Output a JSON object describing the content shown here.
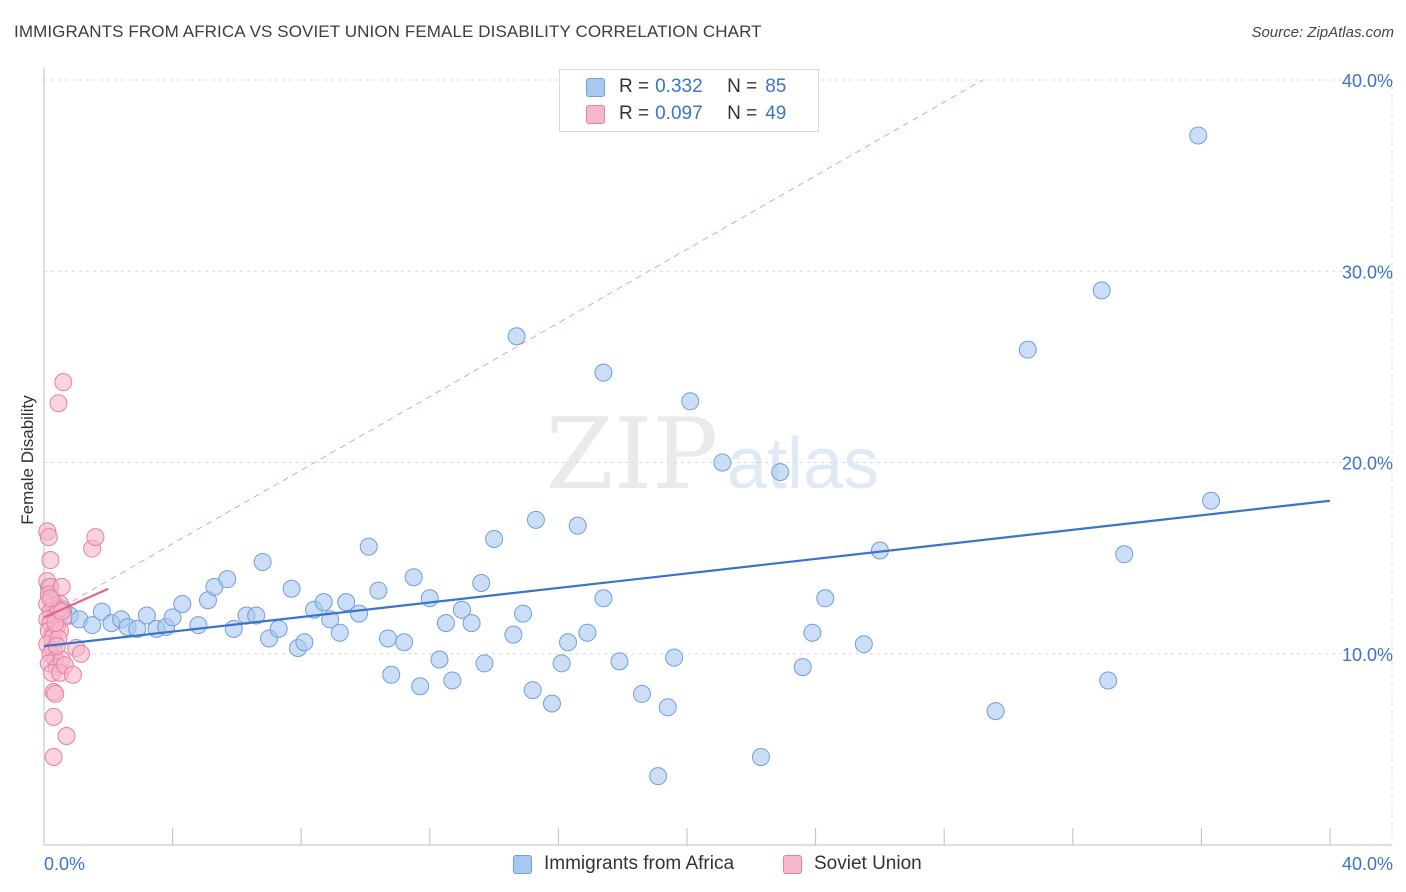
{
  "title": "IMMIGRANTS FROM AFRICA VS SOVIET UNION FEMALE DISABILITY CORRELATION CHART",
  "source": "Source: ZipAtlas.com",
  "watermark": {
    "zip": "ZIP",
    "atlas": "atlas"
  },
  "legend_top": [
    {
      "r_label": "R =",
      "r_value": "0.332",
      "n_label": "N =",
      "n_value": "85",
      "color": "#a8c8ef"
    },
    {
      "r_label": "R =",
      "r_value": "0.097",
      "n_label": "N =",
      "n_value": "49",
      "color": "#f5b8c9"
    }
  ],
  "legend_bottom": [
    {
      "label": "Immigrants from Africa",
      "color": "#a8c8ef"
    },
    {
      "label": "Soviet Union",
      "color": "#f5b8c9"
    }
  ],
  "colors": {
    "africa_fill": "#a8c8ef",
    "africa_stroke": "#6f9fdc",
    "africa_line": "#3a74c9",
    "soviet_fill": "#f5b8c9",
    "soviet_stroke": "#e87f9f",
    "soviet_line": "#e8628a",
    "axis_text": "#3a74c9",
    "grid": "#d8d8d8"
  },
  "chart_data": {
    "type": "scatter",
    "xlabel": "",
    "ylabel": "Female Disability",
    "xlim": [
      0,
      40
    ],
    "ylim": [
      0,
      40
    ],
    "x_tick_labels": [
      "0.0%",
      "40.0%"
    ],
    "y_ticks": [
      10,
      20,
      30,
      40
    ],
    "y_tick_labels": [
      "10.0%",
      "20.0%",
      "30.0%",
      "40.0%"
    ],
    "series": [
      {
        "name": "Immigrants from Africa",
        "r": 0.332,
        "n": 85,
        "trend": {
          "x": [
            0,
            40
          ],
          "y": [
            10.4,
            18.0
          ]
        },
        "points": [
          [
            0.3,
            12.7
          ],
          [
            0.5,
            12.4
          ],
          [
            0.8,
            12.0
          ],
          [
            1.1,
            11.8
          ],
          [
            1.5,
            11.5
          ],
          [
            1.8,
            12.2
          ],
          [
            2.1,
            11.6
          ],
          [
            2.4,
            11.8
          ],
          [
            2.6,
            11.4
          ],
          [
            2.9,
            11.3
          ],
          [
            3.2,
            12.0
          ],
          [
            3.5,
            11.3
          ],
          [
            3.8,
            11.4
          ],
          [
            4.0,
            11.9
          ],
          [
            4.3,
            12.6
          ],
          [
            4.8,
            11.5
          ],
          [
            5.1,
            12.8
          ],
          [
            5.3,
            13.5
          ],
          [
            5.7,
            13.9
          ],
          [
            5.9,
            11.3
          ],
          [
            6.3,
            12.0
          ],
          [
            6.6,
            12.0
          ],
          [
            6.8,
            14.8
          ],
          [
            7.0,
            10.8
          ],
          [
            7.3,
            11.3
          ],
          [
            7.7,
            13.4
          ],
          [
            7.9,
            10.3
          ],
          [
            8.1,
            10.6
          ],
          [
            8.4,
            12.3
          ],
          [
            8.7,
            12.7
          ],
          [
            8.9,
            11.8
          ],
          [
            9.2,
            11.1
          ],
          [
            9.4,
            12.7
          ],
          [
            9.8,
            12.1
          ],
          [
            10.1,
            15.6
          ],
          [
            10.4,
            13.3
          ],
          [
            10.7,
            10.8
          ],
          [
            10.8,
            8.9
          ],
          [
            11.2,
            10.6
          ],
          [
            11.5,
            14.0
          ],
          [
            11.7,
            8.3
          ],
          [
            12.0,
            12.9
          ],
          [
            12.3,
            9.7
          ],
          [
            12.5,
            11.6
          ],
          [
            12.7,
            8.6
          ],
          [
            13.0,
            12.3
          ],
          [
            13.3,
            11.6
          ],
          [
            13.6,
            13.7
          ],
          [
            13.7,
            9.5
          ],
          [
            14.0,
            16.0
          ],
          [
            14.6,
            11.0
          ],
          [
            14.9,
            12.1
          ],
          [
            14.7,
            26.6
          ],
          [
            15.2,
            8.1
          ],
          [
            15.3,
            17.0
          ],
          [
            15.8,
            7.4
          ],
          [
            16.1,
            9.5
          ],
          [
            16.3,
            10.6
          ],
          [
            16.6,
            16.7
          ],
          [
            16.9,
            11.1
          ],
          [
            17.4,
            24.7
          ],
          [
            17.4,
            12.9
          ],
          [
            17.9,
            9.6
          ],
          [
            18.6,
            7.9
          ],
          [
            19.1,
            3.6
          ],
          [
            19.4,
            7.2
          ],
          [
            19.6,
            9.8
          ],
          [
            20.1,
            23.2
          ],
          [
            21.1,
            20.0
          ],
          [
            22.3,
            4.6
          ],
          [
            22.9,
            19.5
          ],
          [
            23.6,
            9.3
          ],
          [
            23.9,
            11.1
          ],
          [
            24.3,
            12.9
          ],
          [
            25.5,
            10.5
          ],
          [
            26.0,
            15.4
          ],
          [
            29.6,
            7.0
          ],
          [
            30.6,
            25.9
          ],
          [
            32.9,
            29.0
          ],
          [
            33.1,
            8.6
          ],
          [
            33.6,
            15.2
          ],
          [
            35.9,
            37.1
          ],
          [
            36.3,
            18.0
          ],
          [
            0.15,
            13.5
          ],
          [
            0.6,
            12.3
          ]
        ]
      },
      {
        "name": "Soviet Union",
        "r": 0.097,
        "n": 49,
        "trend": {
          "x": [
            0,
            2
          ],
          "y": [
            11.9,
            13.4
          ]
        },
        "points": [
          [
            0.1,
            16.4
          ],
          [
            0.15,
            16.1
          ],
          [
            0.2,
            14.9
          ],
          [
            0.1,
            13.8
          ],
          [
            0.2,
            13.5
          ],
          [
            0.15,
            13.1
          ],
          [
            0.25,
            12.8
          ],
          [
            0.1,
            12.6
          ],
          [
            0.3,
            12.5
          ],
          [
            0.2,
            12.2
          ],
          [
            0.35,
            12.0
          ],
          [
            0.1,
            11.8
          ],
          [
            0.2,
            11.6
          ],
          [
            0.4,
            11.4
          ],
          [
            0.15,
            11.2
          ],
          [
            0.3,
            11.0
          ],
          [
            0.25,
            10.8
          ],
          [
            0.1,
            10.5
          ],
          [
            0.3,
            10.2
          ],
          [
            0.2,
            10.0
          ],
          [
            0.35,
            9.7
          ],
          [
            0.15,
            9.5
          ],
          [
            0.4,
            9.3
          ],
          [
            0.25,
            9.0
          ],
          [
            0.3,
            8.0
          ],
          [
            0.35,
            7.9
          ],
          [
            0.3,
            6.7
          ],
          [
            0.3,
            4.6
          ],
          [
            0.45,
            23.1
          ],
          [
            0.6,
            24.2
          ],
          [
            0.55,
            13.5
          ],
          [
            0.5,
            12.6
          ],
          [
            0.6,
            11.9
          ],
          [
            0.5,
            11.2
          ],
          [
            0.45,
            10.8
          ],
          [
            0.55,
            9.7
          ],
          [
            0.5,
            9.0
          ],
          [
            0.65,
            9.4
          ],
          [
            0.7,
            5.7
          ],
          [
            0.9,
            8.9
          ],
          [
            1.0,
            10.3
          ],
          [
            1.15,
            10.0
          ],
          [
            1.5,
            15.5
          ],
          [
            1.6,
            16.1
          ],
          [
            0.45,
            12.3
          ],
          [
            0.2,
            12.9
          ],
          [
            0.35,
            11.6
          ],
          [
            0.55,
            12.2
          ],
          [
            0.4,
            10.4
          ]
        ]
      }
    ],
    "reference_line": {
      "x": [
        0,
        29.2
      ],
      "y": [
        11.9,
        40.0
      ],
      "style": "dashed"
    }
  }
}
